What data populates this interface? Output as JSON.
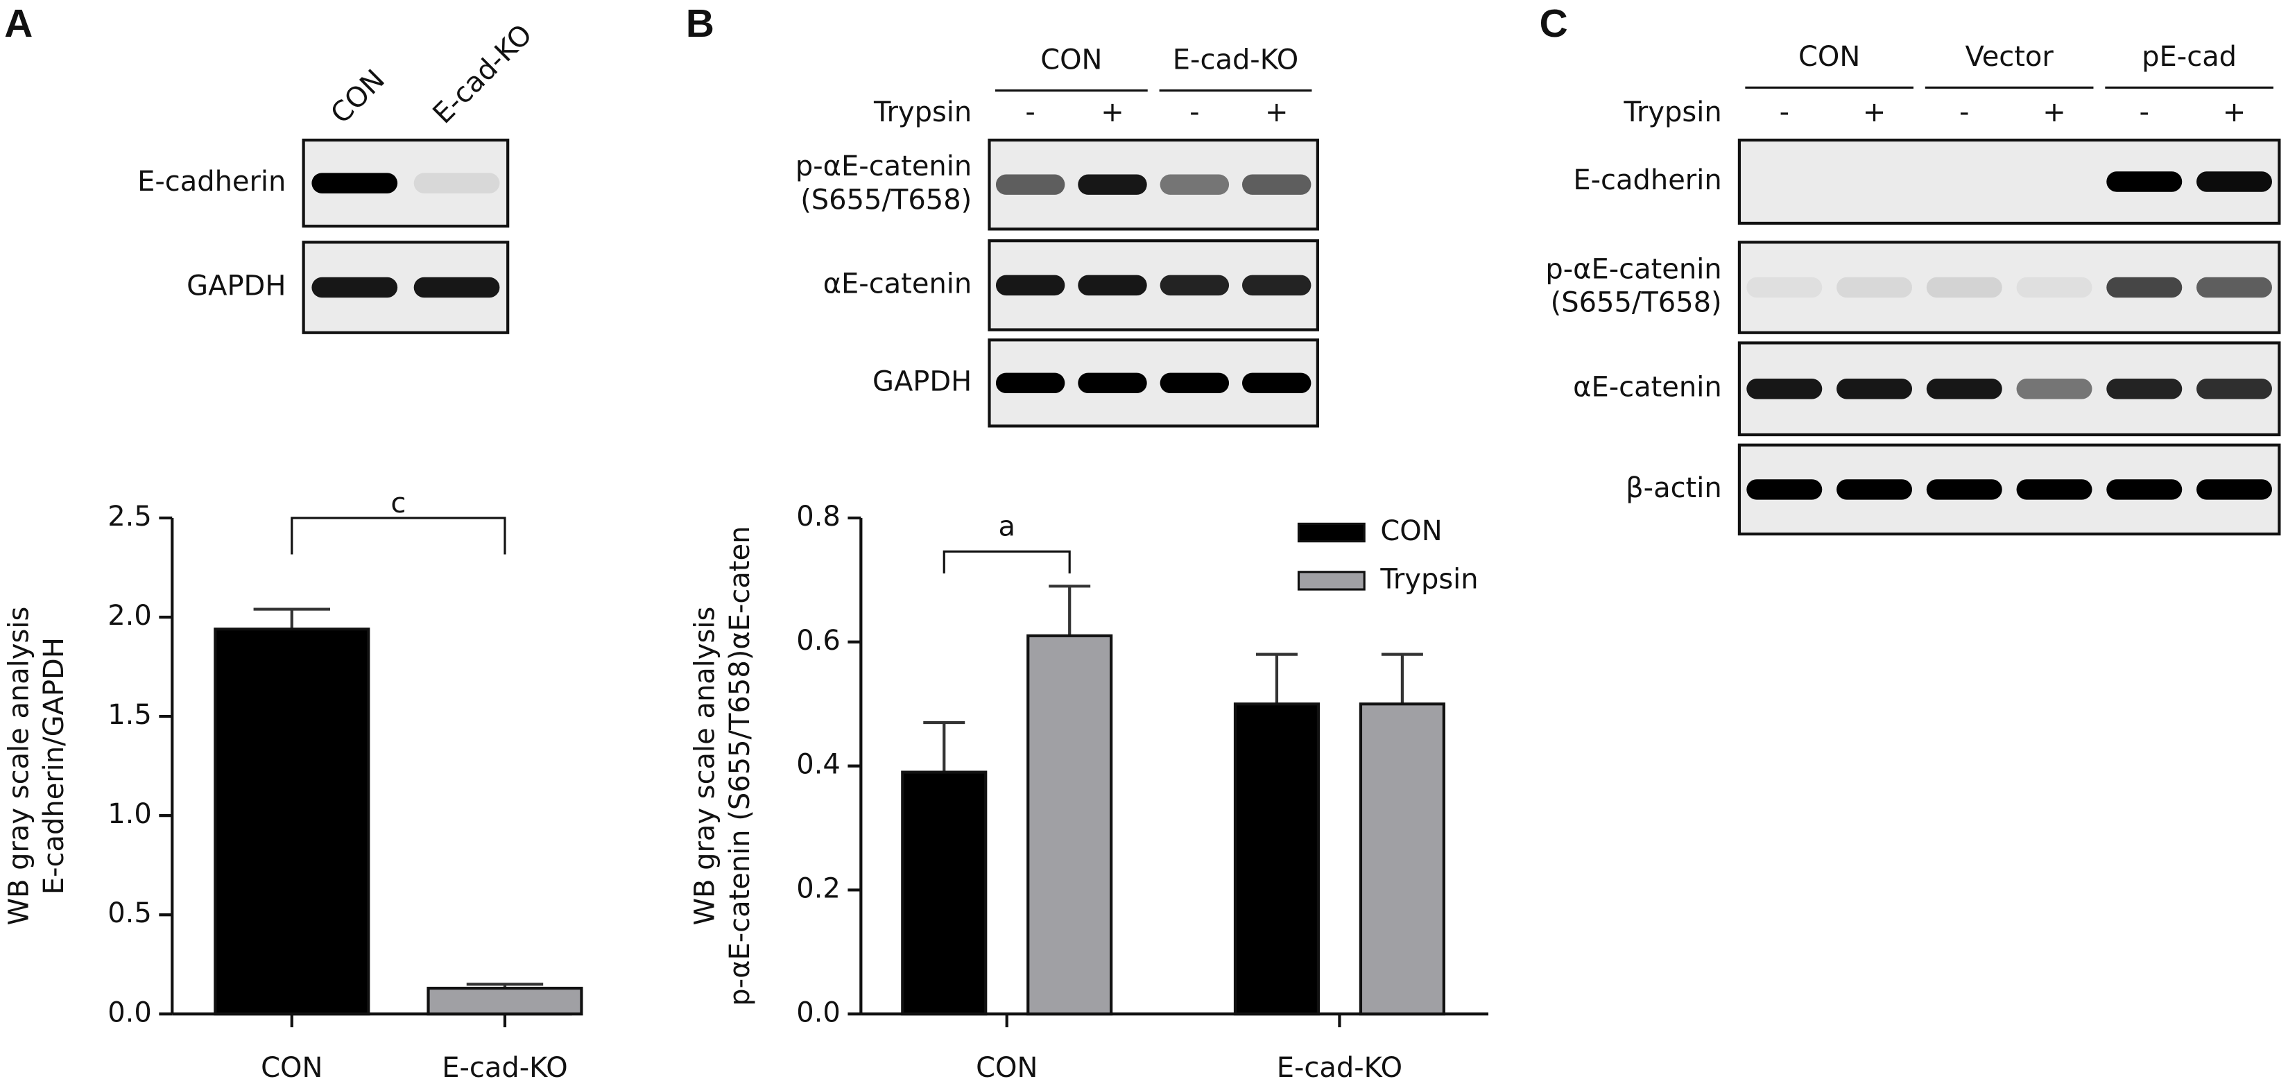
{
  "panel_labels": [
    "A",
    "B",
    "C"
  ],
  "blots": [
    {
      "lanes": [
        "CON",
        "E-cad-KO"
      ],
      "rows": [
        [
          "E-cadherin"
        ],
        [
          "GAPDH"
        ]
      ]
    },
    {
      "groups": [
        "CON",
        "E-cad-KO"
      ],
      "treatment": "Trypsin",
      "lanes": [
        "-",
        "+",
        "-",
        "+"
      ],
      "rows": [
        [
          "p-αE-catenin",
          "(S655/T658)"
        ],
        [
          "αE-catenin"
        ],
        [
          "GAPDH"
        ]
      ]
    },
    {
      "groups": [
        "CON",
        "Vector",
        "pE-cad"
      ],
      "treatment": "Trypsin",
      "lanes": [
        "-",
        "+",
        "-",
        "+",
        "-",
        "+"
      ],
      "rows": [
        [
          "E-cadherin"
        ],
        [
          "p-αE-catenin",
          "(S655/T658)"
        ],
        [
          "αE-catenin"
        ],
        [
          "β-actin"
        ]
      ]
    }
  ],
  "chart_data": [
    {
      "type": "bar",
      "y_label": [
        "WB gray scale analysis",
        "E-cadherin/GAPDH"
      ],
      "categories": [
        "CON",
        "E-cad-KO"
      ],
      "values": [
        1.94,
        0.13
      ],
      "errors": [
        0.1,
        0.02
      ],
      "colors": [
        "#000000",
        "#a0a0a4"
      ],
      "annotation": "c",
      "ylim": [
        0,
        2.5
      ],
      "yticks": [
        {
          "value": 0,
          "label": "0.0"
        },
        0.5,
        {
          "value": 1,
          "label": "1.0"
        },
        1.5,
        {
          "value": 2,
          "label": "2.0"
        },
        2.5
      ]
    },
    {
      "type": "grouped_bar",
      "y_label": [
        "WB gray scale analysis",
        "p-αE-catenin (S655/T658)αE-caten"
      ],
      "categories": [
        "CON",
        "E-cad-KO"
      ],
      "series": [
        {
          "name": "CON",
          "color": "#000000",
          "values": [
            0.39,
            0.5
          ],
          "errors": [
            0.08,
            0.08
          ]
        },
        {
          "name": "Trypsin",
          "color": "#a0a0a4",
          "values": [
            0.61,
            0.5
          ],
          "errors": [
            0.08,
            0.08
          ]
        }
      ],
      "annotation": "a",
      "legend": "upper right",
      "ylim": [
        0,
        0.8
      ],
      "yticks": [
        {
          "value": 0,
          "label": "0.0"
        },
        0.2,
        0.4,
        0.6,
        0.8
      ]
    }
  ]
}
